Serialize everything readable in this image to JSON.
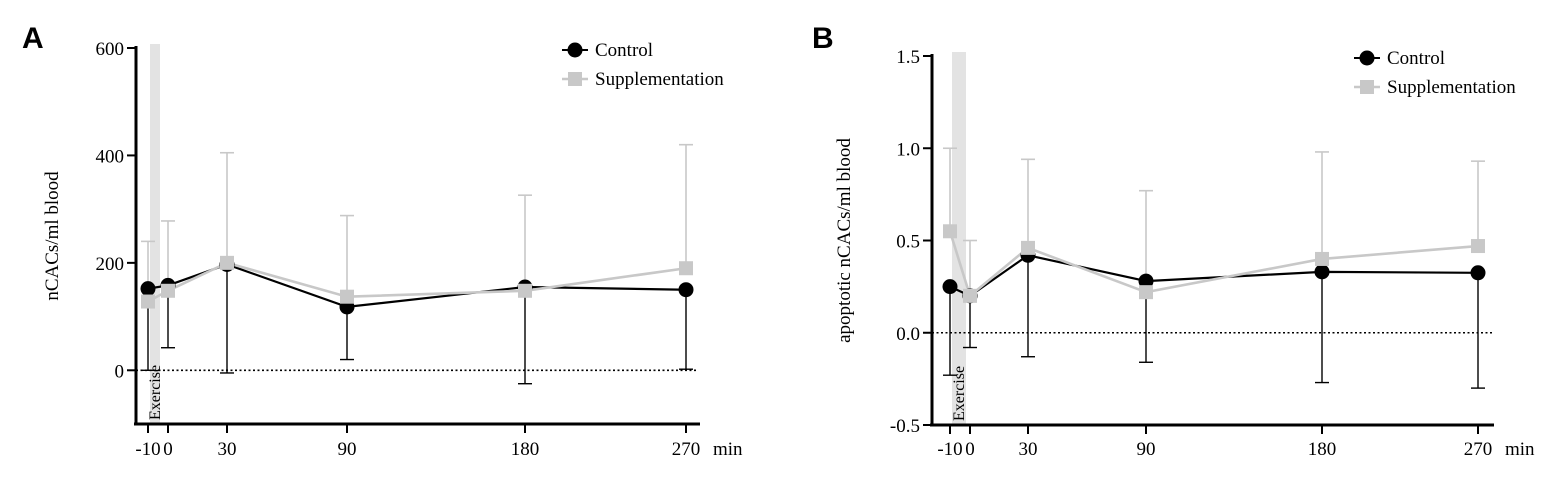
{
  "chart_data": [
    {
      "panel": "A",
      "type": "line",
      "ylabel": "nCACs/ml blood",
      "xlabel": "min",
      "x": [
        -10,
        0,
        30,
        90,
        180,
        270
      ],
      "x_tick_labels": [
        "-10",
        "0",
        "30",
        "90",
        "180",
        "270"
      ],
      "ylim": [
        -100,
        600
      ],
      "y_ticks": [
        0,
        200,
        400,
        600
      ],
      "y_tick_labels": [
        "0",
        "200",
        "400",
        "600"
      ],
      "baseline": 0,
      "shaded_band": {
        "x_from": -9,
        "x_to": -4,
        "label": "Exercise"
      },
      "legend": [
        "Control",
        "Supplementation"
      ],
      "series": [
        {
          "name": "Control",
          "marker": "circle",
          "color": "#000000",
          "values": [
            152,
            158,
            197,
            118,
            155,
            150
          ],
          "error_lower": [
            0,
            42,
            -5,
            20,
            -25,
            2
          ]
        },
        {
          "name": "Supplementation",
          "marker": "square",
          "color": "#c8c8c8",
          "values": [
            128,
            148,
            200,
            137,
            148,
            190
          ],
          "error_upper": [
            240,
            278,
            405,
            288,
            326,
            420
          ]
        }
      ]
    },
    {
      "panel": "B",
      "type": "line",
      "ylabel": "apoptotic nCACs/ml blood",
      "xlabel": "min",
      "x": [
        -10,
        0,
        30,
        90,
        180,
        270
      ],
      "x_tick_labels": [
        "-10",
        "0",
        "30",
        "90",
        "180",
        "270"
      ],
      "ylim": [
        -0.5,
        1.5
      ],
      "y_ticks": [
        -0.5,
        0.0,
        0.5,
        1.0,
        1.5
      ],
      "y_tick_labels": [
        "-0.5",
        "0.0",
        "0.5",
        "1.0",
        "1.5"
      ],
      "baseline": 0,
      "shaded_band": {
        "x_from": -9,
        "x_to": -2,
        "label": "Exercise"
      },
      "legend": [
        "Control",
        "Supplementation"
      ],
      "series": [
        {
          "name": "Control",
          "marker": "circle",
          "color": "#000000",
          "values": [
            0.25,
            0.2,
            0.42,
            0.28,
            0.33,
            0.325
          ],
          "error_lower": [
            -0.23,
            -0.08,
            -0.13,
            -0.16,
            -0.27,
            -0.3
          ]
        },
        {
          "name": "Supplementation",
          "marker": "square",
          "color": "#c8c8c8",
          "values": [
            0.55,
            0.2,
            0.46,
            0.22,
            0.4,
            0.47
          ],
          "error_upper": [
            1.0,
            0.5,
            0.94,
            0.77,
            0.98,
            0.93
          ]
        }
      ]
    }
  ]
}
